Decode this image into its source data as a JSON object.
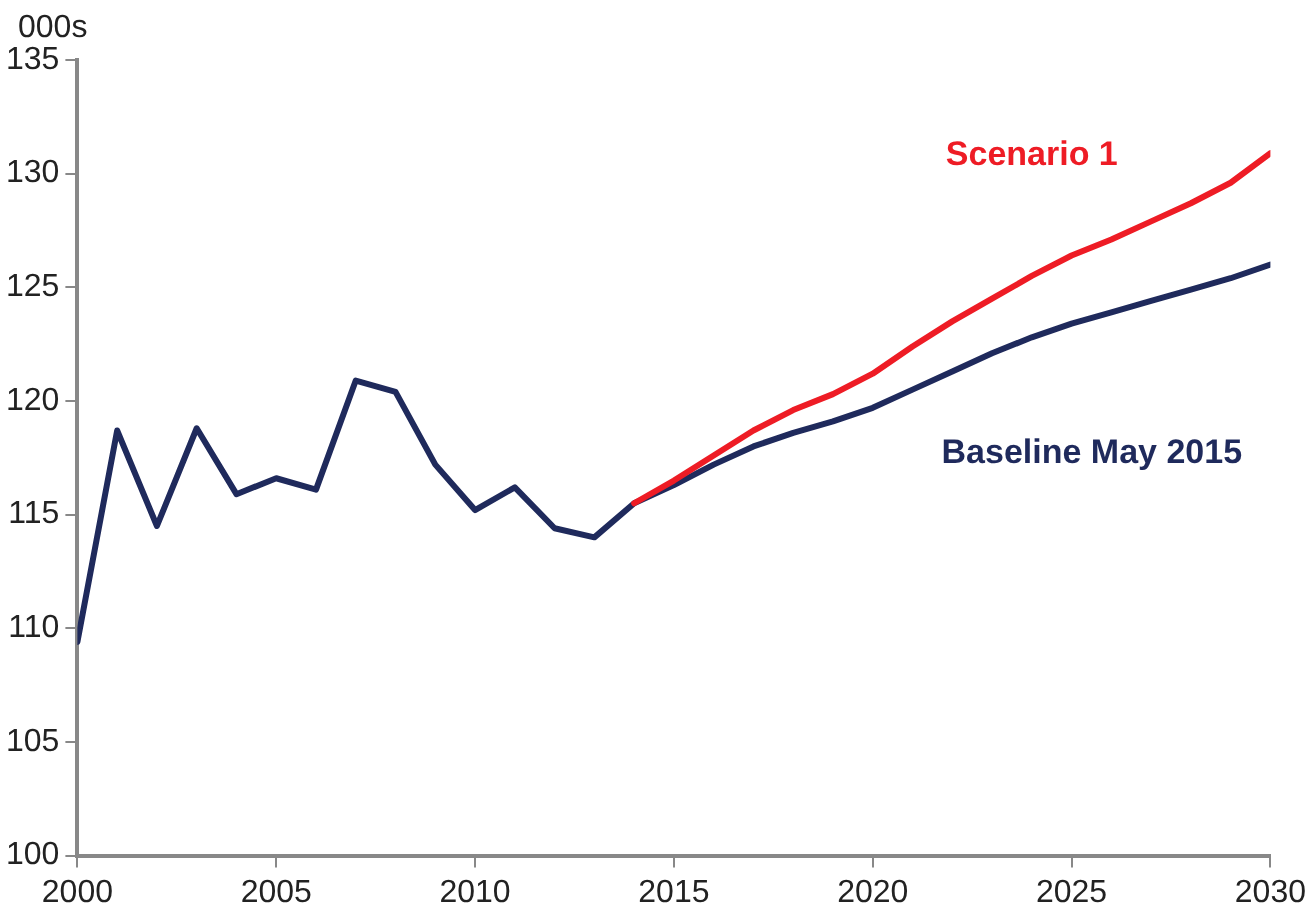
{
  "chart_data": {
    "type": "line",
    "ylabel": "000s",
    "x": [
      2000,
      2001,
      2002,
      2003,
      2004,
      2005,
      2006,
      2007,
      2008,
      2009,
      2010,
      2011,
      2012,
      2013,
      2014,
      2015,
      2016,
      2017,
      2018,
      2019,
      2020,
      2021,
      2022,
      2023,
      2024,
      2025,
      2026,
      2027,
      2028,
      2029,
      2030
    ],
    "series": [
      {
        "name": "Scenario 1",
        "color": "#ee1c25",
        "values": [
          null,
          null,
          null,
          null,
          null,
          null,
          null,
          null,
          null,
          null,
          null,
          null,
          null,
          null,
          115.5,
          116.5,
          117.6,
          118.7,
          119.6,
          120.3,
          121.2,
          122.4,
          123.5,
          124.5,
          125.5,
          126.4,
          127.1,
          127.9,
          128.7,
          129.6,
          130.9
        ]
      },
      {
        "name": "Baseline May 2015",
        "color": "#1f2a5c",
        "values": [
          109.4,
          118.7,
          114.5,
          118.8,
          115.9,
          116.6,
          116.1,
          120.9,
          120.4,
          117.2,
          115.2,
          116.2,
          114.4,
          114.0,
          115.5,
          116.3,
          117.2,
          118.0,
          118.6,
          119.1,
          119.7,
          120.5,
          121.3,
          122.1,
          122.8,
          123.4,
          123.9,
          124.4,
          124.9,
          125.4,
          126.0
        ]
      }
    ],
    "xlim": [
      2000,
      2030
    ],
    "xticks": [
      2000,
      2005,
      2010,
      2015,
      2020,
      2025,
      2030
    ],
    "ylim": [
      100,
      135
    ],
    "yticks": [
      100,
      105,
      110,
      115,
      120,
      125,
      130,
      135
    ],
    "grid": false,
    "legend": false,
    "marker": "none",
    "line_style": "solid"
  }
}
